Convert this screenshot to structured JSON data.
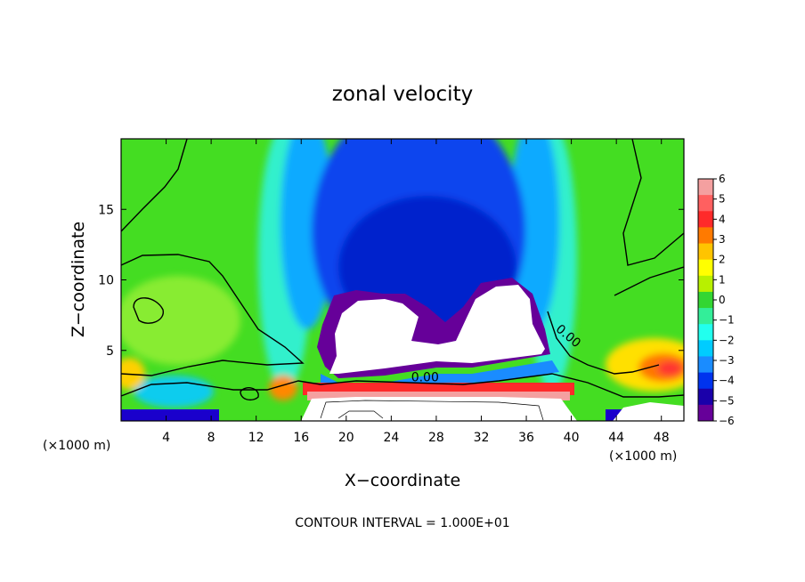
{
  "chart_data": {
    "type": "heatmap",
    "title": "zonal velocity",
    "xlabel": "X−coordinate",
    "ylabel": "Z−coordinate",
    "x_unit_label_left": "(×1000 m)",
    "x_unit_label_right": "(×1000 m)",
    "footer": "CONTOUR INTERVAL = 1.000E+01",
    "xlim": [
      0,
      50
    ],
    "ylim": [
      0,
      20
    ],
    "x_ticks": [
      4,
      8,
      12,
      16,
      20,
      24,
      28,
      32,
      36,
      40,
      44,
      48
    ],
    "x_tick_labels": [
      "4",
      "8",
      "12",
      "16",
      "20",
      "24",
      "28",
      "32",
      "36",
      "40",
      "44",
      "48"
    ],
    "y_ticks": [
      5,
      10,
      15
    ],
    "y_tick_labels": [
      "5",
      "10",
      "15"
    ],
    "colorbar": {
      "min": -6,
      "max": 6,
      "levels": [
        6,
        5,
        4,
        3,
        2,
        1,
        0,
        -1,
        -2,
        -3,
        -4,
        -5,
        -6
      ],
      "labels": [
        "6",
        "5",
        "4",
        "3",
        "2",
        "1",
        "0",
        "−1",
        "−2",
        "−3",
        "−4",
        "−5",
        "−6"
      ],
      "colors": [
        "#f4a0a0",
        "#ff6060",
        "#ff2a2a",
        "#ff7a00",
        "#ffc400",
        "#ffff00",
        "#b8f000",
        "#33d633",
        "#33ee99",
        "#22ffee",
        "#00ccff",
        "#1a8cff",
        "#0033ee",
        "#1a00aa",
        "#660099"
      ]
    },
    "contour_labels": [
      {
        "text": "0.00",
        "x": 27,
        "y": 2.8
      },
      {
        "text": "0.00",
        "x": 39.5,
        "y": 5.8
      }
    ]
  }
}
